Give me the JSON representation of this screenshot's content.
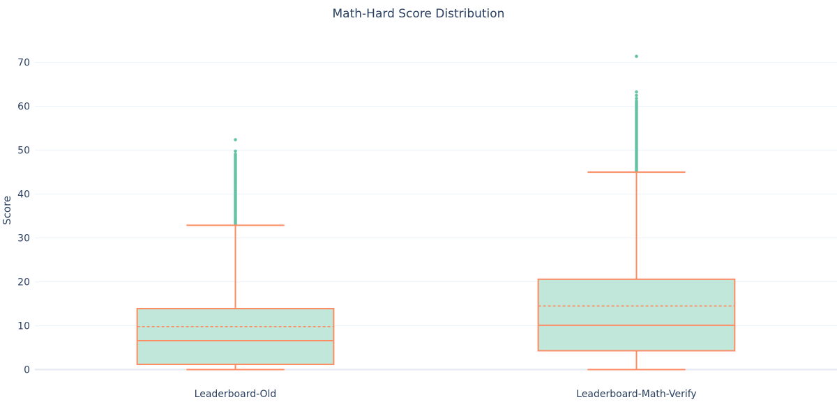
{
  "chart_data": {
    "type": "box",
    "title": "Math-Hard Score Distribution",
    "xlabel": "",
    "ylabel": "Score",
    "ylim": [
      -1.5,
      75.5
    ],
    "yticks": [
      0,
      10,
      20,
      30,
      40,
      50,
      60,
      70
    ],
    "grid": true,
    "legend": "none",
    "colors": {
      "line": "#fc8d62",
      "fill": "#c1e7db",
      "outlier": "#66c2a5",
      "grid": "#ebf0f8",
      "text": "#2a3f5f"
    },
    "boxes": [
      {
        "category": "Leaderboard-Old",
        "lower_fence": 0,
        "q1": 1.2,
        "median": 6.6,
        "mean": 9.8,
        "q3": 13.9,
        "upper_fence": 32.9,
        "outliers": [
          33.1,
          33.4,
          33.7,
          34.0,
          34.3,
          34.6,
          34.9,
          35.2,
          35.5,
          35.8,
          36.1,
          36.4,
          36.7,
          37.0,
          37.3,
          37.6,
          37.9,
          38.2,
          38.5,
          38.8,
          39.1,
          39.4,
          39.7,
          40.0,
          40.3,
          40.6,
          40.9,
          41.2,
          41.5,
          41.8,
          42.1,
          42.4,
          42.7,
          43.0,
          43.3,
          43.6,
          43.9,
          44.2,
          44.5,
          44.8,
          45.1,
          45.4,
          45.7,
          46.0,
          46.3,
          46.6,
          46.9,
          47.2,
          47.5,
          47.8,
          48.1,
          48.4,
          48.7,
          49.1,
          49.8,
          52.4
        ]
      },
      {
        "category": "Leaderboard-Math-Verify",
        "lower_fence": 0,
        "q1": 4.3,
        "median": 10.1,
        "mean": 14.5,
        "q3": 20.6,
        "upper_fence": 45.0,
        "outliers": [
          45.2,
          45.5,
          45.8,
          46.1,
          46.4,
          46.7,
          47.0,
          47.3,
          47.6,
          47.9,
          48.2,
          48.5,
          48.8,
          49.1,
          49.4,
          49.7,
          50.0,
          50.3,
          50.6,
          50.9,
          51.2,
          51.5,
          51.8,
          52.1,
          52.4,
          52.7,
          53.0,
          53.3,
          53.6,
          53.9,
          54.2,
          54.5,
          54.8,
          55.1,
          55.4,
          55.7,
          56.0,
          56.3,
          56.6,
          56.9,
          57.2,
          57.5,
          57.8,
          58.1,
          58.4,
          58.7,
          59.0,
          59.3,
          59.6,
          59.9,
          60.2,
          60.5,
          60.8,
          61.2,
          61.8,
          62.5,
          63.3,
          71.4
        ]
      }
    ]
  }
}
